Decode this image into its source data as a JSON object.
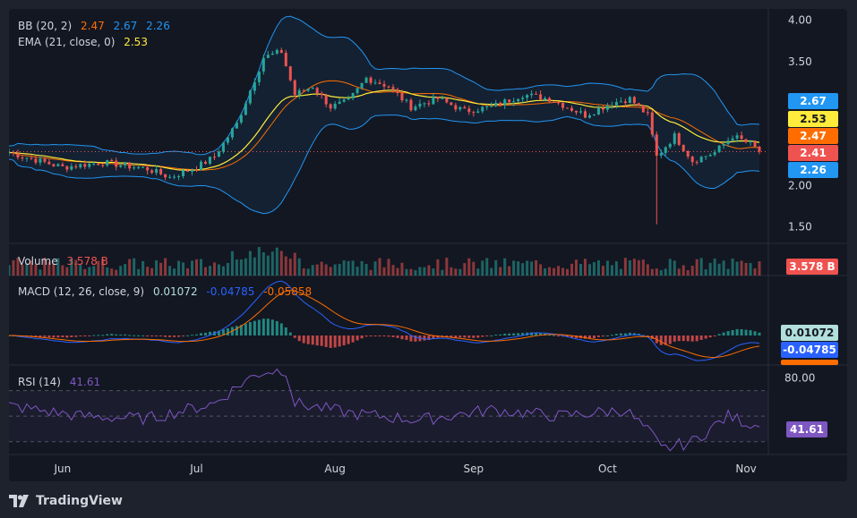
{
  "legend": {
    "bb": {
      "label": "BB (20, 2)",
      "basis": "2.47",
      "upper": "2.67",
      "lower": "2.26"
    },
    "ema": {
      "label": "EMA (21, close, 0)",
      "value": "2.53"
    },
    "volume": {
      "label": "Volume",
      "value": "3.578 B"
    },
    "macd": {
      "label": "MACD (12, 26, close, 9)",
      "hist": "0.01072",
      "macd": "-0.04785",
      "signal": "-0.05858"
    },
    "rsi": {
      "label": "RSI (14)",
      "value": "41.61"
    }
  },
  "price_scale": {
    "ticks": [
      "4.00",
      "3.50",
      "2.00",
      "1.50"
    ],
    "tags": {
      "upper": "2.67",
      "ema": "2.53",
      "basis": "2.47",
      "last": "2.41",
      "lower": "2.26",
      "volume": "3.578 B",
      "macd_hist": "0.01072",
      "macd": "-0.04785",
      "rsi": "41.61",
      "rsi_top": "80.00"
    }
  },
  "time_axis": [
    "Jun",
    "Jul",
    "Aug",
    "Sep",
    "Oct",
    "Nov"
  ],
  "footer": {
    "brand": "TradingView"
  },
  "colors": {
    "bull": "#26a69a",
    "bear": "#ef5350",
    "bb": "#2196f3",
    "bb_basis": "#ff6d00",
    "ema": "#ffeb3b",
    "rsi": "#7e57c2",
    "macd": "#2962ff",
    "signal": "#ff6d00"
  },
  "chart_data": {
    "type": "candlestick",
    "x_range": [
      "2023-05-20",
      "2023-11-06"
    ],
    "price_ylim": [
      1.3,
      4.05
    ],
    "price_anchors": [
      [
        "2023-05-20",
        2.4
      ],
      [
        "2023-06-01",
        2.22
      ],
      [
        "2023-06-10",
        2.28
      ],
      [
        "2023-06-20",
        2.2
      ],
      [
        "2023-06-25",
        2.1
      ],
      [
        "2023-07-01",
        2.22
      ],
      [
        "2023-07-05",
        2.35
      ],
      [
        "2023-07-10",
        2.75
      ],
      [
        "2023-07-13",
        3.15
      ],
      [
        "2023-07-16",
        3.55
      ],
      [
        "2023-07-20",
        3.62
      ],
      [
        "2023-07-23",
        3.1
      ],
      [
        "2023-07-27",
        3.2
      ],
      [
        "2023-07-31",
        2.95
      ],
      [
        "2023-08-04",
        3.02
      ],
      [
        "2023-08-08",
        3.3
      ],
      [
        "2023-08-13",
        3.2
      ],
      [
        "2023-08-18",
        2.95
      ],
      [
        "2023-08-24",
        3.05
      ],
      [
        "2023-08-30",
        2.9
      ],
      [
        "2023-09-05",
        2.95
      ],
      [
        "2023-09-12",
        3.1
      ],
      [
        "2023-09-18",
        3.05
      ],
      [
        "2023-09-26",
        2.85
      ],
      [
        "2023-10-02",
        3.0
      ],
      [
        "2023-10-06",
        3.05
      ],
      [
        "2023-10-10",
        2.85
      ],
      [
        "2023-10-12",
        2.35
      ],
      [
        "2023-10-16",
        2.6
      ],
      [
        "2023-10-20",
        2.3
      ],
      [
        "2023-10-25",
        2.4
      ],
      [
        "2023-10-29",
        2.6
      ],
      [
        "2023-11-02",
        2.5
      ],
      [
        "2023-11-04",
        2.41
      ]
    ],
    "wick_spike": {
      "date": "2023-10-12",
      "low": 1.53
    },
    "last_price": 2.41,
    "bb_upper_last": 2.67,
    "bb_basis_last": 2.47,
    "bb_lower_last": 2.26,
    "ema_last": 2.53,
    "volume_last": 3.578,
    "macd_last": -0.04785,
    "signal_last": -0.05858,
    "hist_last": 0.01072,
    "rsi_ylim": [
      20,
      90
    ],
    "rsi_bands": [
      30,
      50,
      70
    ],
    "rsi_anchors": [
      [
        "2023-05-20",
        58
      ],
      [
        "2023-06-05",
        50
      ],
      [
        "2023-06-20",
        48
      ],
      [
        "2023-07-05",
        60
      ],
      [
        "2023-07-12",
        78
      ],
      [
        "2023-07-16",
        85
      ],
      [
        "2023-07-21",
        86
      ],
      [
        "2023-07-23",
        60
      ],
      [
        "2023-08-05",
        52
      ],
      [
        "2023-08-20",
        47
      ],
      [
        "2023-09-05",
        55
      ],
      [
        "2023-09-20",
        50
      ],
      [
        "2023-10-05",
        55
      ],
      [
        "2023-10-11",
        35
      ],
      [
        "2023-10-13",
        24
      ],
      [
        "2023-10-20",
        30
      ],
      [
        "2023-10-28",
        50
      ],
      [
        "2023-11-04",
        41.61
      ]
    ]
  }
}
